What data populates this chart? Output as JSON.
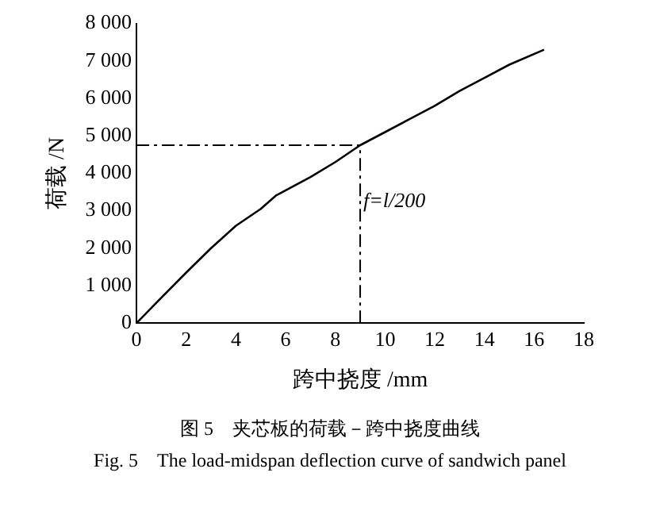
{
  "chart_data": {
    "type": "line",
    "xlabel": "跨中挠度 /mm",
    "ylabel": "荷载 /N",
    "x": [
      0,
      1,
      2,
      3,
      4,
      5,
      5.6,
      7,
      8,
      9,
      10,
      11,
      12,
      13,
      14,
      15,
      16.4
    ],
    "series": [
      {
        "color": "#000000",
        "values": [
          0,
          680,
          1350,
          2000,
          2600,
          3050,
          3400,
          3900,
          4300,
          4750,
          5100,
          5450,
          5800,
          6200,
          6550,
          6900,
          7300
        ]
      }
    ],
    "xlim": [
      0,
      18
    ],
    "xticks": [
      0,
      2,
      4,
      6,
      8,
      10,
      12,
      14,
      16,
      18
    ],
    "ylim": [
      0,
      8000
    ],
    "yticks": [
      0,
      {
        "value": 1000,
        "label": "1 000"
      },
      {
        "value": 2000,
        "label": "2 000"
      },
      {
        "value": 3000,
        "label": "3 000"
      },
      {
        "value": 4000,
        "label": "4 000"
      },
      {
        "value": 5000,
        "label": "5 000"
      },
      {
        "value": 6000,
        "label": "6 000"
      },
      {
        "value": 7000,
        "label": "7 000"
      },
      {
        "value": 8000,
        "label": "8 000"
      }
    ],
    "ref_lines": [
      {
        "axis": "x",
        "value": 9,
        "label": "f=l/200",
        "line_style": "dashdot"
      },
      {
        "axis": "y",
        "value": 4750,
        "label": null,
        "line_style": "dashdot"
      }
    ],
    "grid": false,
    "legend": false,
    "marker": "none",
    "line_style": "solid",
    "annotations": [
      "图 5　夹芯板的荷载－跨中挠度曲线",
      "Fig. 5　The load-midspan deflection curve of sandwich panel"
    ]
  }
}
